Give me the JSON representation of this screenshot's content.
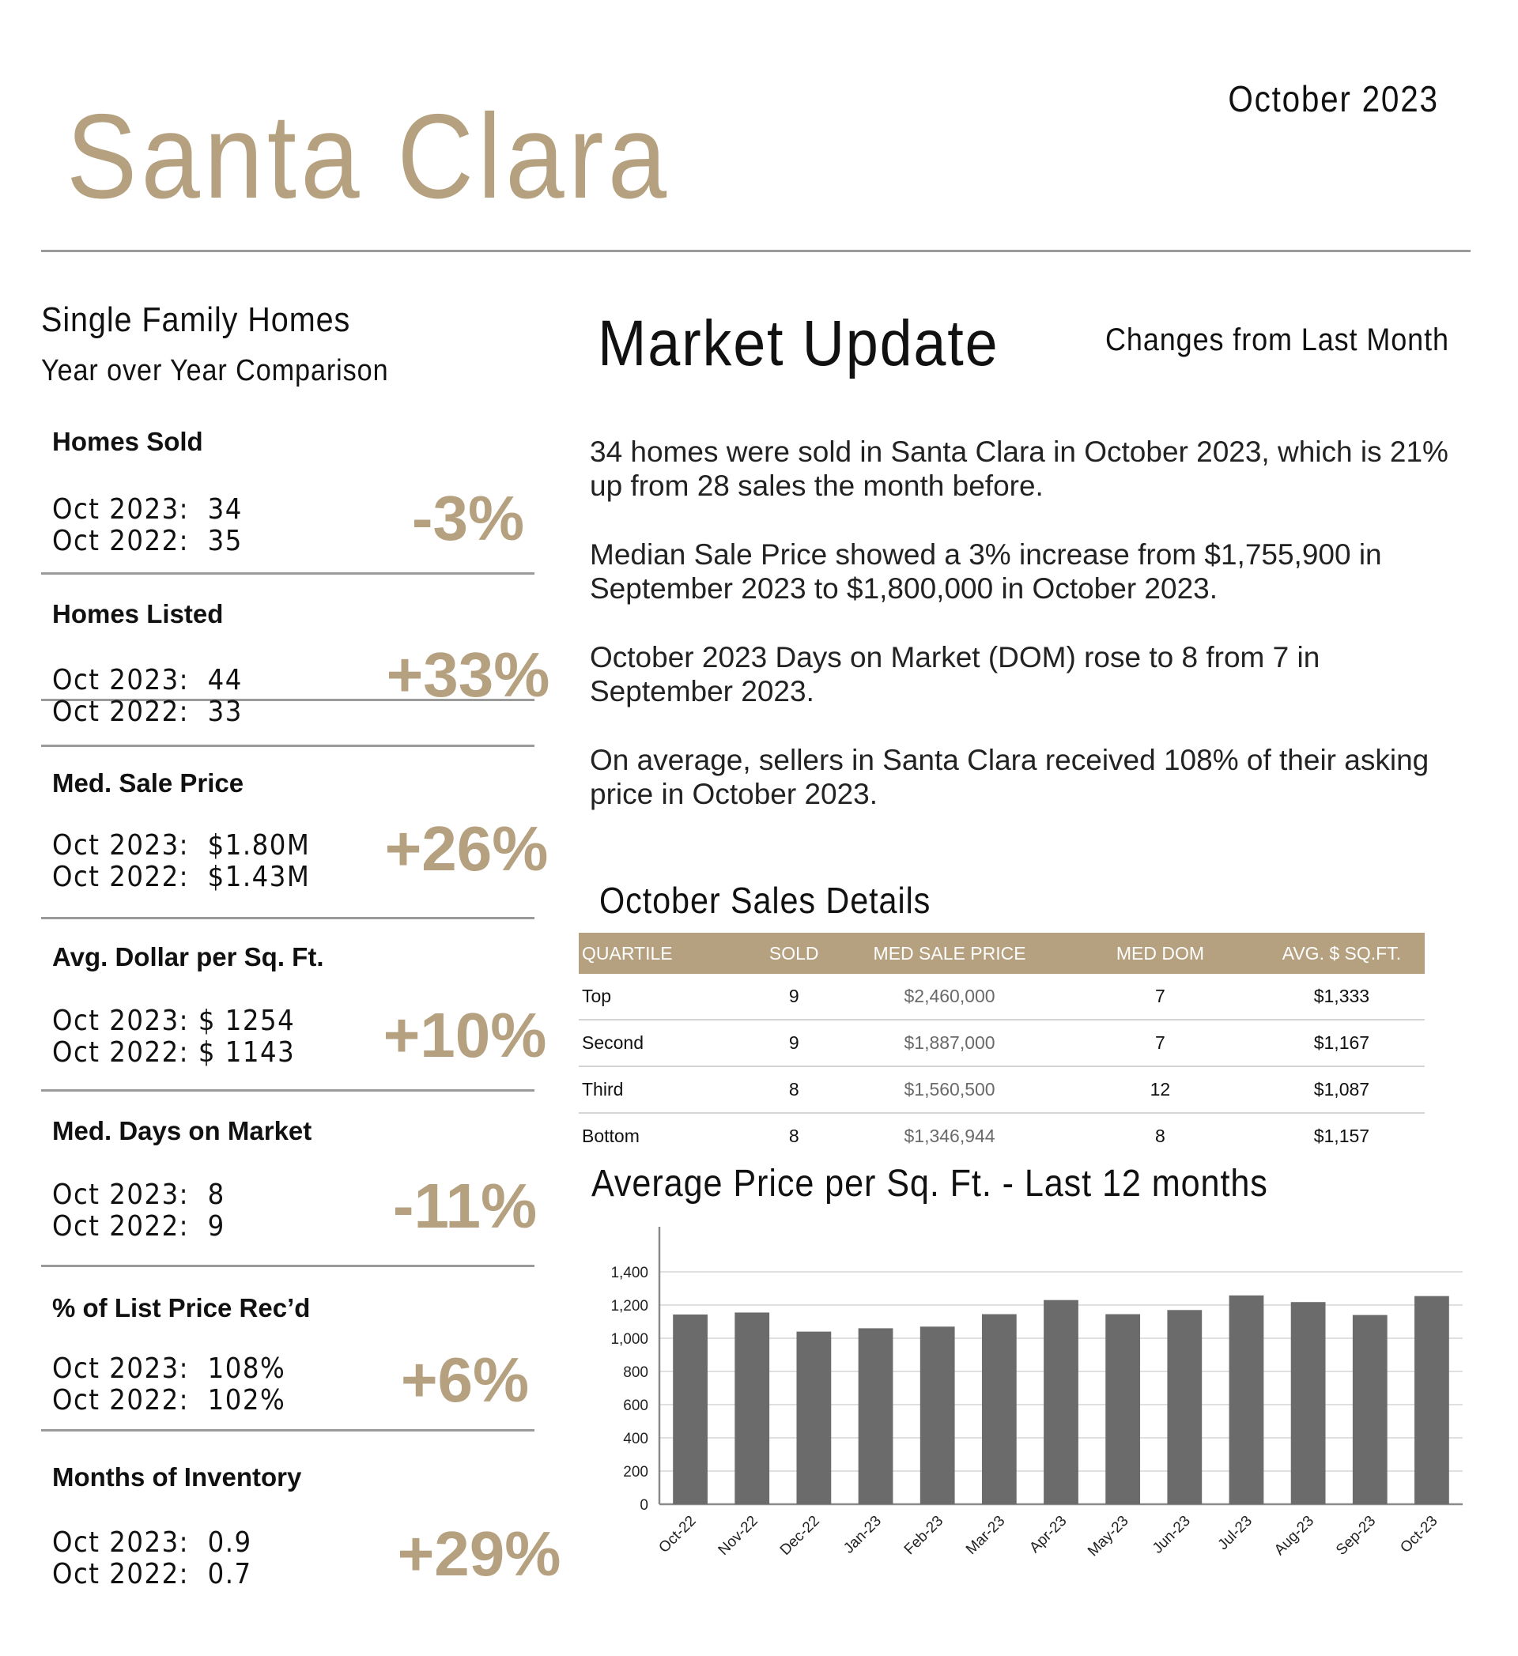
{
  "header": {
    "title": "Santa Clara",
    "date": "October 2023"
  },
  "left": {
    "section_title": "Single Family Homes",
    "section_subtitle": "Year over Year Comparison",
    "metrics": [
      {
        "label": "Homes Sold",
        "line1": "Oct 2023:  34",
        "line2": "Oct 2022:  35",
        "change": "-3%"
      },
      {
        "label": "Homes Listed",
        "line1": "Oct 2023:  44",
        "line2": "Oct 2022:  33",
        "change": "+33%"
      },
      {
        "label": "Med. Sale Price",
        "line1": "Oct 2023:  $1.80M",
        "line2": "Oct 2022:  $1.43M",
        "change": "+26%"
      },
      {
        "label": "Avg. Dollar per Sq. Ft.",
        "line1": "Oct 2023: $ 1254",
        "line2": "Oct 2022: $ 1143",
        "change": "+10%"
      },
      {
        "label": "Med. Days on Market",
        "line1": "Oct 2023:  8",
        "line2": "Oct 2022:  9",
        "change": "-11%"
      },
      {
        "label": "% of List Price Rec’d",
        "line1": "Oct 2023:  108%",
        "line2": "Oct 2022:  102%",
        "change": "+6%"
      },
      {
        "label": "Months of Inventory",
        "line1": "Oct 2023:  0.9",
        "line2": "Oct 2022:  0.7",
        "change": "+29%"
      }
    ]
  },
  "market_update": {
    "title": "Market Update",
    "changes_label": "Changes from Last Month",
    "paragraphs": [
      "34 homes were sold in Santa Clara in October 2023, which is 21% up from 28 sales the month before.",
      "Median Sale Price showed a 3% increase from $1,755,900 in September 2023 to $1,800,000 in October 2023.",
      "October 2023 Days on Market (DOM) rose to 8 from 7 in September 2023.",
      "On average, sellers in Santa Clara received 108% of their asking price in October 2023."
    ]
  },
  "sales_details": {
    "title": "October Sales Details",
    "columns": [
      "QUARTILE",
      "SOLD",
      "MED SALE PRICE",
      "MED DOM",
      "AVG. $ SQ.FT."
    ],
    "rows": [
      [
        "Top",
        "9",
        "$2,460,000",
        "7",
        "$1,333"
      ],
      [
        "Second",
        "9",
        "$1,887,000",
        "7",
        "$1,167"
      ],
      [
        "Third",
        "8",
        "$1,560,500",
        "12",
        "$1,087"
      ],
      [
        "Bottom",
        "8",
        "$1,346,944",
        "8",
        "$1,157"
      ]
    ]
  },
  "chart_data": {
    "type": "bar",
    "title": "Average Price per Sq. Ft. - Last 12 months",
    "categories": [
      "Oct-22",
      "Nov-22",
      "Dec-22",
      "Jan-23",
      "Feb-23",
      "Mar-23",
      "Apr-23",
      "May-23",
      "Jun-23",
      "Jul-23",
      "Aug-23",
      "Sep-23",
      "Oct-23"
    ],
    "values": [
      1143,
      1155,
      1040,
      1060,
      1070,
      1145,
      1230,
      1145,
      1170,
      1258,
      1218,
      1140,
      1254
    ],
    "yticks": [
      "0",
      "200",
      "400",
      "600",
      "800",
      "1,000",
      "1,200",
      "1,400"
    ],
    "ylim": [
      0,
      1500
    ],
    "grid": true,
    "bar_color": "#6b6b6b"
  }
}
